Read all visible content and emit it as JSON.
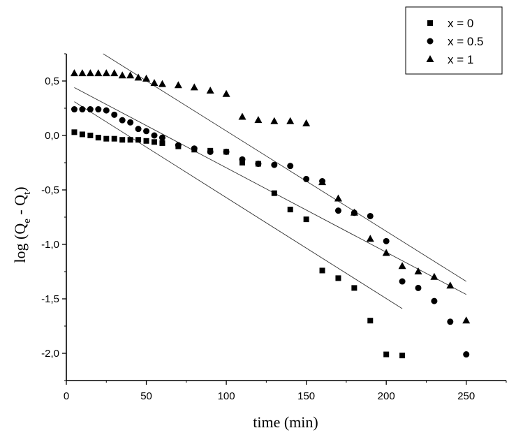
{
  "chart_data": {
    "type": "scatter",
    "title": "",
    "xlabel": "time (min)",
    "ylabel_main": "log (Q",
    "ylabel_sub_e": "e",
    "ylabel_mid": " - Q",
    "ylabel_sub_t": "t",
    "ylabel_end": ")",
    "xlim": [
      0,
      275
    ],
    "ylim": [
      -2.25,
      0.75
    ],
    "xticks": [
      0,
      50,
      100,
      150,
      200,
      250
    ],
    "xtick_labels": [
      "0",
      "50",
      "100",
      "150",
      "200",
      "250"
    ],
    "yticks": [
      0.5,
      0.0,
      -0.5,
      -1.0,
      -1.5,
      -2.0
    ],
    "ytick_labels": [
      "0,5",
      "0,0",
      "-0,5",
      "-1,0",
      "-1,5",
      "-2,0"
    ],
    "legend_position": "top-right",
    "series": [
      {
        "name": "x = 0",
        "marker": "square",
        "x": [
          5,
          10,
          15,
          20,
          25,
          30,
          35,
          40,
          45,
          50,
          55,
          60,
          70,
          80,
          90,
          100,
          110,
          120,
          130,
          140,
          150,
          160,
          170,
          180,
          190,
          200,
          210
        ],
        "y": [
          0.03,
          0.01,
          0.0,
          -0.02,
          -0.03,
          -0.03,
          -0.04,
          -0.04,
          -0.04,
          -0.05,
          -0.06,
          -0.07,
          -0.1,
          -0.13,
          -0.14,
          -0.15,
          -0.25,
          -0.26,
          -0.53,
          -0.68,
          -0.77,
          -1.24,
          -1.31,
          -1.4,
          -1.7,
          -2.01,
          -2.02
        ],
        "fit": {
          "x": [
            5,
            210
          ],
          "y": [
            0.31,
            -1.59
          ]
        }
      },
      {
        "name": "x = 0.5",
        "marker": "circle",
        "x": [
          5,
          10,
          15,
          20,
          25,
          30,
          35,
          40,
          45,
          50,
          55,
          60,
          70,
          80,
          90,
          100,
          110,
          120,
          130,
          140,
          150,
          160,
          170,
          180,
          190,
          200,
          210,
          220,
          230,
          240,
          250
        ],
        "y": [
          0.24,
          0.24,
          0.24,
          0.24,
          0.23,
          0.19,
          0.14,
          0.12,
          0.06,
          0.04,
          0.0,
          -0.02,
          -0.09,
          -0.12,
          -0.15,
          -0.15,
          -0.22,
          -0.26,
          -0.27,
          -0.28,
          -0.4,
          -0.42,
          -0.69,
          -0.71,
          -0.74,
          -0.97,
          -1.34,
          -1.4,
          -1.52,
          -1.71,
          -2.01
        ],
        "fit": {
          "x": [
            5,
            250
          ],
          "y": [
            0.44,
            -1.46
          ]
        }
      },
      {
        "name": "x = 1",
        "marker": "triangle",
        "x": [
          5,
          10,
          15,
          20,
          25,
          30,
          35,
          40,
          45,
          50,
          55,
          60,
          70,
          80,
          90,
          100,
          110,
          120,
          130,
          140,
          150,
          160,
          170,
          180,
          190,
          200,
          210,
          220,
          230,
          240,
          250
        ],
        "y": [
          0.57,
          0.57,
          0.57,
          0.57,
          0.57,
          0.57,
          0.55,
          0.55,
          0.53,
          0.52,
          0.48,
          0.47,
          0.46,
          0.44,
          0.41,
          0.38,
          0.17,
          0.14,
          0.13,
          0.13,
          0.11,
          -0.43,
          -0.58,
          -0.71,
          -0.95,
          -1.08,
          -1.2,
          -1.25,
          -1.3,
          -1.38,
          -1.7
        ],
        "fit": {
          "x": [
            23,
            250
          ],
          "y": [
            0.75,
            -1.34
          ]
        }
      }
    ]
  }
}
